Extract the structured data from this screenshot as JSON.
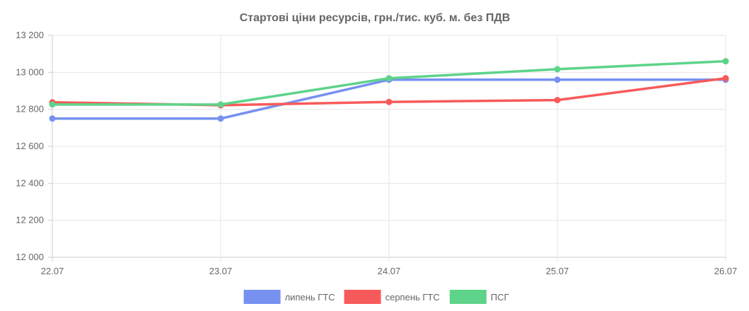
{
  "chart_data": {
    "type": "line",
    "title": "Стартові ціни ресурсів, грн./тис. куб. м. без ПДВ",
    "categories": [
      "22.07",
      "23.07",
      "24.07",
      "25.07",
      "26.07"
    ],
    "ylim": [
      12000,
      13200
    ],
    "yticks": [
      12000,
      12200,
      12400,
      12600,
      12800,
      13000,
      13200
    ],
    "ytick_labels": [
      "12 000",
      "12 200",
      "12 400",
      "12 600",
      "12 800",
      "13 000",
      "13 200"
    ],
    "grid": true,
    "legend_position": "bottom",
    "series": [
      {
        "name": "липень ГТС",
        "color": "#7691f0",
        "values": [
          12750,
          12750,
          12960,
          12960,
          12960
        ]
      },
      {
        "name": "серпень ГТС",
        "color": "#f75a5a",
        "values": [
          12838,
          12822,
          12840,
          12850,
          12968
        ]
      },
      {
        "name": "ПСГ",
        "color": "#5ed38a",
        "values": [
          12826,
          12826,
          12968,
          13017,
          13060
        ]
      }
    ]
  }
}
